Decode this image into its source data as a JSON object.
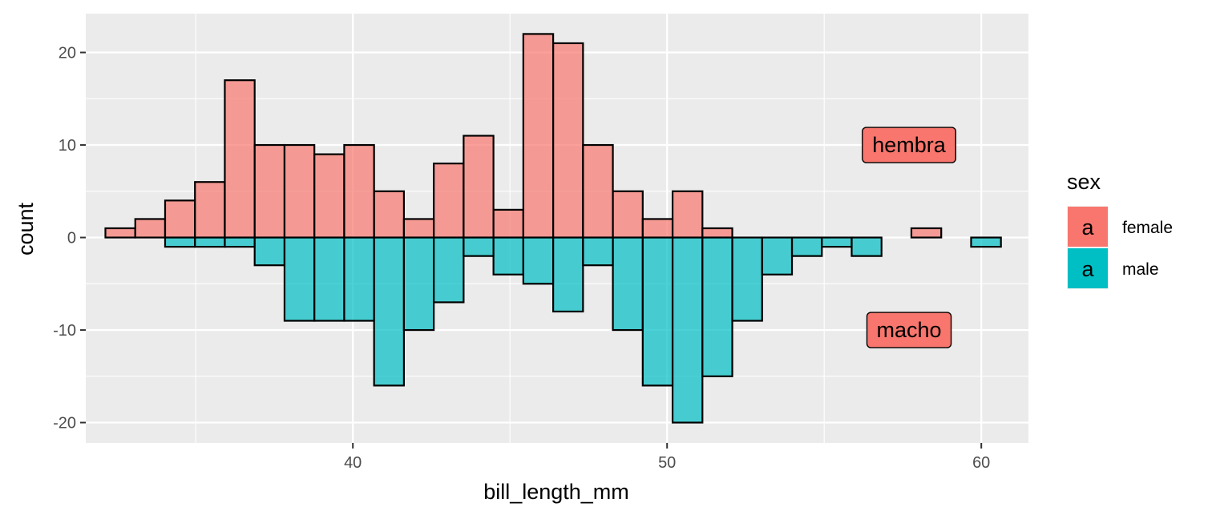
{
  "chart_data": {
    "type": "bar",
    "xlabel": "bill_length_mm",
    "ylabel": "count",
    "xlim": [
      31.5,
      61.5
    ],
    "ylim": [
      -22.2,
      24.2
    ],
    "x_ticks": [
      40,
      50,
      60
    ],
    "x_tick_labels": [
      "40",
      "50",
      "60"
    ],
    "y_ticks": [
      20,
      10,
      0,
      -10,
      -20
    ],
    "y_tick_labels": [
      "20",
      "10",
      "0",
      "-10",
      "-20"
    ],
    "bin_width": 0.95,
    "bin_centers": [
      32.6,
      33.55,
      34.5,
      35.45,
      36.4,
      37.35,
      38.3,
      39.25,
      40.2,
      41.15,
      42.1,
      43.05,
      44.0,
      44.95,
      45.9,
      46.85,
      47.8,
      48.75,
      49.7,
      50.65,
      51.6,
      52.55,
      53.5,
      54.45,
      55.4,
      56.35,
      57.3,
      58.25,
      59.2,
      60.15
    ],
    "series": [
      {
        "name": "female",
        "color": "#F8766D",
        "values": [
          1,
          2,
          4,
          6,
          17,
          10,
          10,
          9,
          10,
          5,
          2,
          8,
          11,
          3,
          22,
          21,
          10,
          5,
          2,
          5,
          1,
          0,
          0,
          0,
          0,
          0,
          0,
          1,
          0,
          0
        ]
      },
      {
        "name": "male",
        "color": "#00BFC4",
        "values": [
          0,
          0,
          -1,
          -1,
          -1,
          -3,
          -9,
          -9,
          -9,
          -16,
          -10,
          -7,
          -2,
          -4,
          -5,
          -8,
          -3,
          -10,
          -16,
          -20,
          -15,
          -9,
          -4,
          -2,
          -1,
          -2,
          0,
          0,
          0,
          -1
        ]
      }
    ],
    "annotations": [
      {
        "text": "hembra",
        "x": 57.7,
        "y": 10,
        "fill": "#F8766D"
      },
      {
        "text": "macho",
        "x": 57.7,
        "y": -10,
        "fill": "#F8766D"
      }
    ],
    "legend": {
      "title": "sex",
      "key_glyph": "a",
      "entries": [
        "female",
        "male"
      ],
      "position": "right"
    },
    "grid": true,
    "panel_background": "#EBEBEB"
  }
}
